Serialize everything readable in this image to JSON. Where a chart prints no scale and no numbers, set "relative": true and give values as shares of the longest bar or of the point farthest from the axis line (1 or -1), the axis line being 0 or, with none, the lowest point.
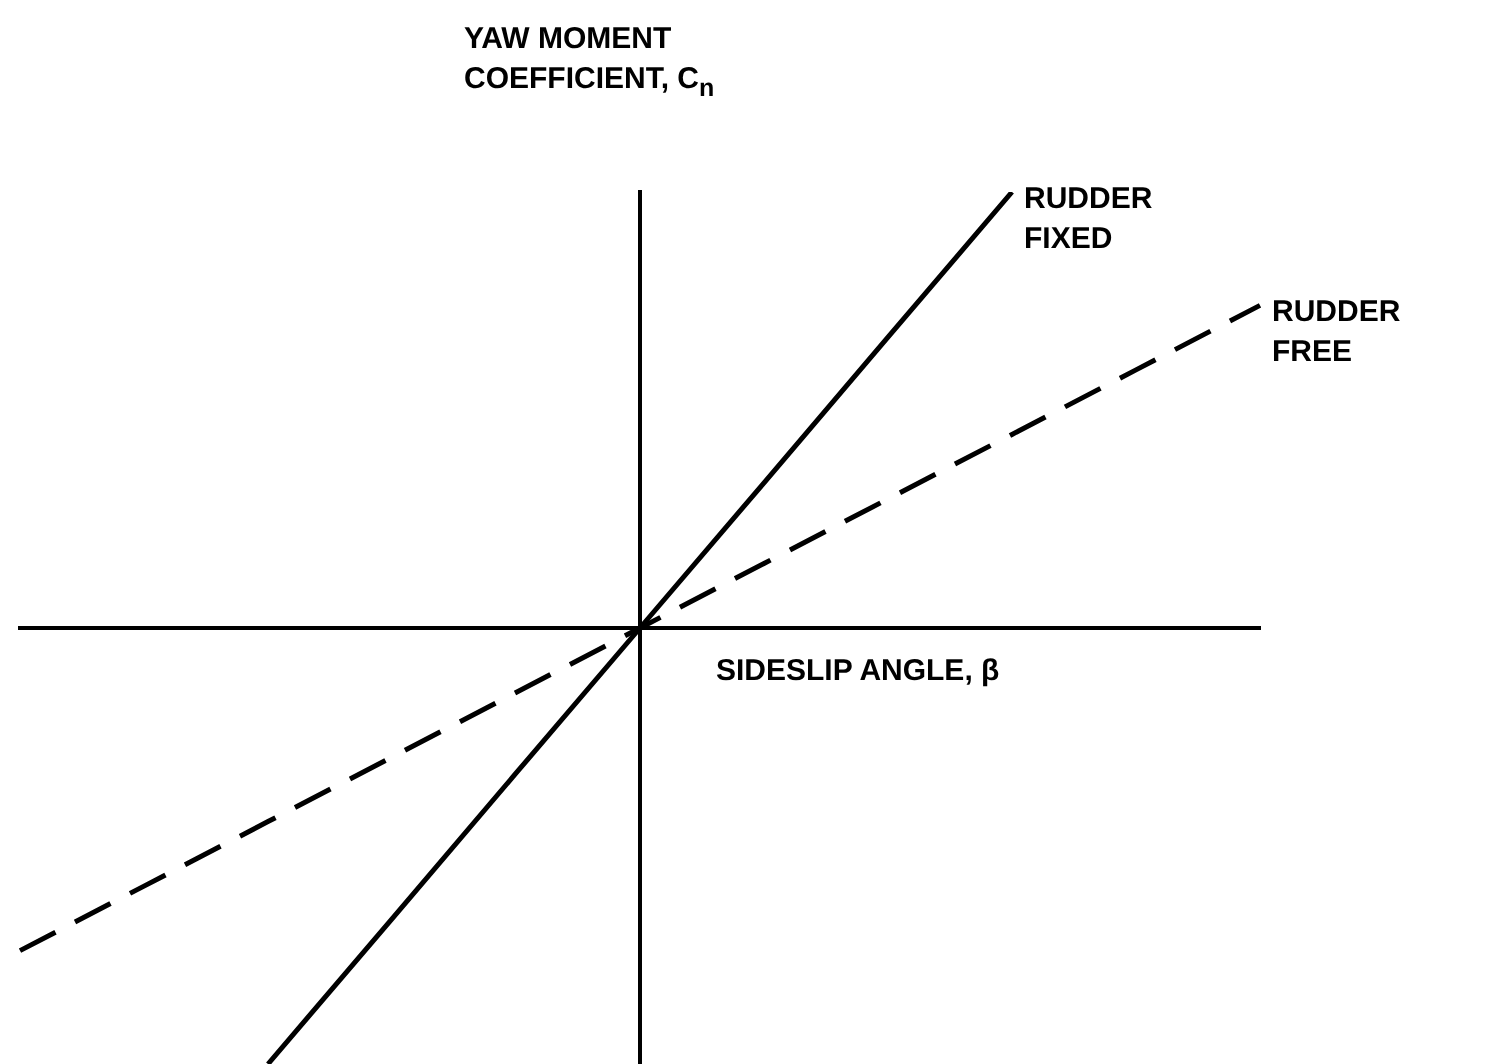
{
  "chart_data": {
    "type": "line",
    "relative": true,
    "xlabel": "SIDESLIP ANGLE, β",
    "ylabel": "YAW MOMENT\nCOEFFICIENT, C$_{n}$",
    "legend": false,
    "grid": false,
    "categories": [
      null,
      null,
      null,
      null,
      null,
      null,
      null,
      null,
      null,
      null,
      null
    ],
    "series": [
      {
        "name": "RUDDER FIXED",
        "color": "#000000",
        "line_style": "solid",
        "values": [
          null,
          null,
          -1,
          -0.667,
          -0.333,
          0,
          0.333,
          0.667,
          1,
          null,
          null
        ]
      },
      {
        "name": "RUDDER FREE",
        "color": "#000000",
        "line_style": "dashed",
        "values": [
          -0.74,
          -0.592,
          -0.444,
          -0.296,
          -0.148,
          0,
          0.148,
          0.296,
          0.444,
          0.592,
          0.74
        ]
      }
    ]
  }
}
